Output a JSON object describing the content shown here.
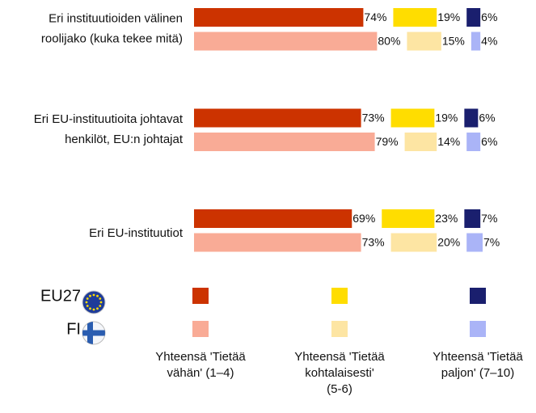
{
  "chart_data": {
    "type": "stacked_bar",
    "categories": [
      [
        "Eri instituutioiden välinen",
        "roolijako (kuka tekee mitä)"
      ],
      [
        "Eri EU-instituutioita johtavat",
        "henkilöt, EU:n johtajat"
      ],
      [
        "Eri EU-instituutiot"
      ]
    ],
    "segments": [
      [
        "Yhteensä 'Tietää",
        "vähän' (1–4)"
      ],
      [
        "Yhteensä 'Tietää",
        "kohtalaisesti'",
        "(5-6)"
      ],
      [
        "Yhteensä 'Tietää",
        "paljon' (7–10)"
      ]
    ],
    "rows": [
      {
        "name": "EU27",
        "colors": [
          "#cc3300",
          "#ffdd00",
          "#1a1f6e"
        ],
        "values": [
          [
            74,
            19,
            6
          ],
          [
            73,
            19,
            6
          ],
          [
            69,
            23,
            7
          ]
        ],
        "value_labels": [
          [
            "74%",
            "19%",
            "6%"
          ],
          [
            "73%",
            "19%",
            "6%"
          ],
          [
            "69%",
            "23%",
            "7%"
          ]
        ]
      },
      {
        "name": "FI",
        "colors": [
          "#f9ab96",
          "#fde5a3",
          "#aab4f7"
        ],
        "values": [
          [
            80,
            15,
            4
          ],
          [
            79,
            14,
            6
          ],
          [
            73,
            20,
            7
          ]
        ],
        "value_labels": [
          [
            "80%",
            "15%",
            "4%"
          ],
          [
            "79%",
            "14%",
            "6%"
          ],
          [
            "73%",
            "20%",
            "7%"
          ]
        ]
      }
    ]
  }
}
